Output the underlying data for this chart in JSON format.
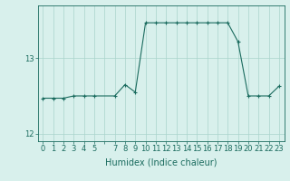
{
  "xlabel": "Humidex (Indice chaleur)",
  "background_color": "#d8f0ec",
  "grid_color": "#aad4cc",
  "line_color": "#1a6b5e",
  "marker": "+",
  "markersize": 3,
  "linewidth": 0.8,
  "x": [
    0,
    1,
    2,
    3,
    4,
    5,
    7,
    8,
    9,
    10,
    11,
    12,
    13,
    14,
    15,
    16,
    17,
    18,
    19,
    20,
    21,
    22,
    23
  ],
  "y": [
    12.47,
    12.47,
    12.47,
    12.5,
    12.5,
    12.5,
    12.5,
    12.65,
    12.55,
    13.47,
    13.47,
    13.47,
    13.47,
    13.47,
    13.47,
    13.47,
    13.47,
    13.47,
    13.22,
    12.5,
    12.5,
    12.5,
    12.63
  ],
  "ylim": [
    11.9,
    13.7
  ],
  "yticks": [
    12,
    13
  ],
  "tick_fontsize": 6,
  "label_fontsize": 7
}
